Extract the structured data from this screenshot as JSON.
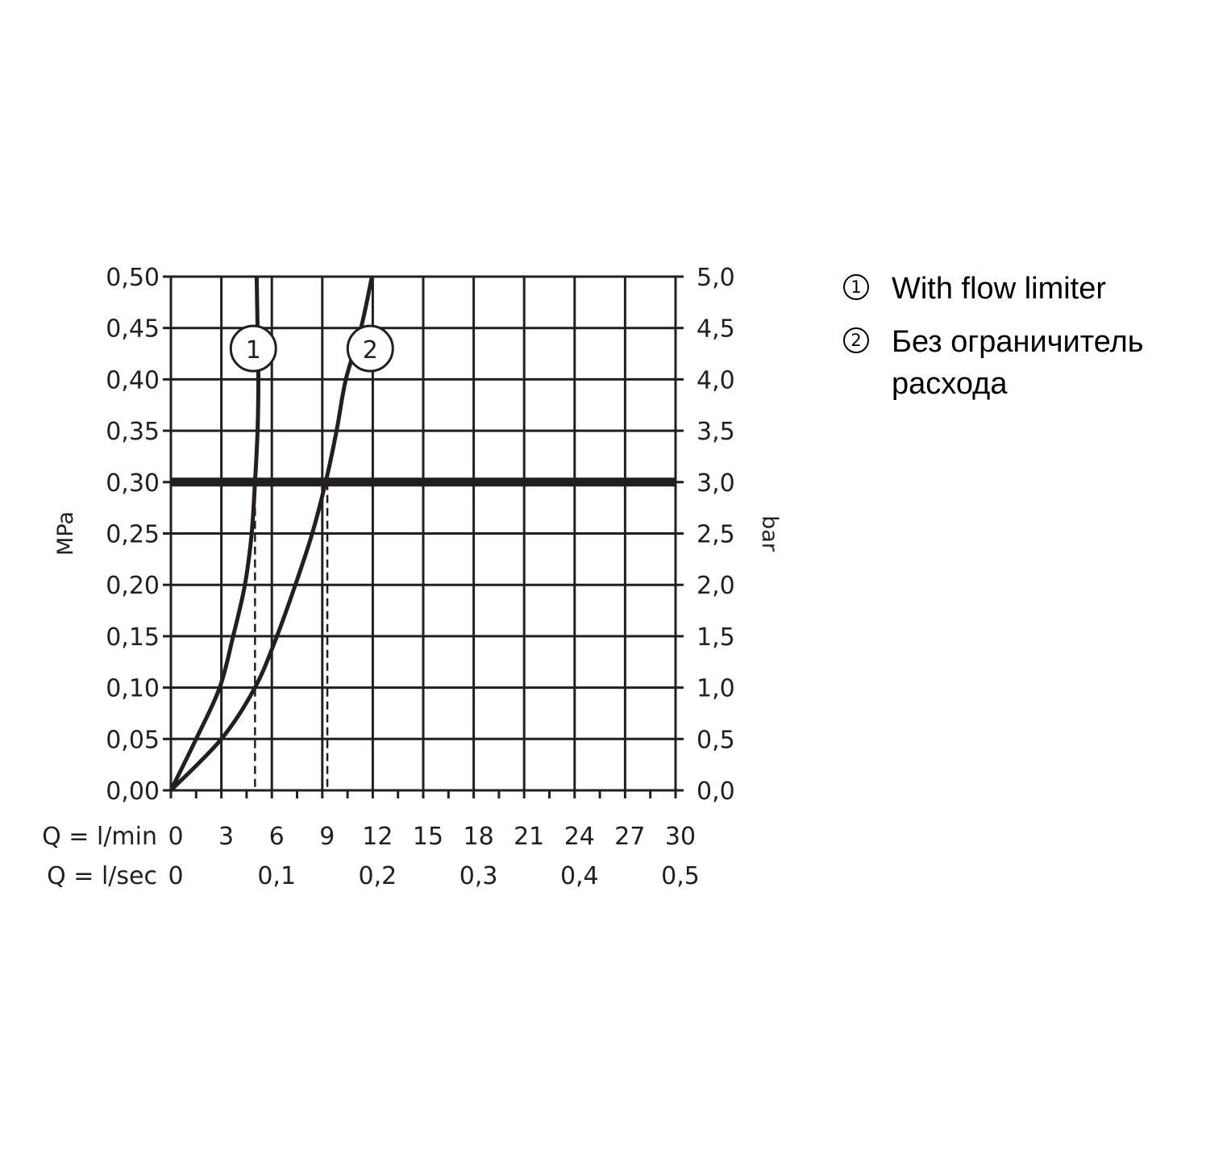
{
  "chart_data": {
    "type": "line",
    "title": "",
    "y_left": {
      "label": "MPa",
      "range": [
        0,
        0.5
      ],
      "ticks": [
        "0,00",
        "0,05",
        "0,10",
        "0,15",
        "0,20",
        "0,25",
        "0,30",
        "0,35",
        "0,40",
        "0,45",
        "0,50"
      ]
    },
    "y_right": {
      "label": "bar",
      "range": [
        0,
        5
      ],
      "ticks": [
        "0,0",
        "0,5",
        "1,0",
        "1,5",
        "2,0",
        "2,5",
        "3,0",
        "3,5",
        "4,0",
        "4,5",
        "5,0"
      ]
    },
    "x_min": {
      "label": "Q = l/min",
      "range": [
        0,
        30
      ],
      "ticks": [
        {
          "v": 0,
          "t": "0"
        },
        {
          "v": 3,
          "t": "3"
        },
        {
          "v": 6,
          "t": "6"
        },
        {
          "v": 9,
          "t": "9"
        },
        {
          "v": 12,
          "t": "12"
        },
        {
          "v": 15,
          "t": "15"
        },
        {
          "v": 18,
          "t": "18"
        },
        {
          "v": 21,
          "t": "21"
        },
        {
          "v": 24,
          "t": "24"
        },
        {
          "v": 27,
          "t": "27"
        },
        {
          "v": 30,
          "t": "30"
        }
      ]
    },
    "x_sec": {
      "label": "Q = l/sec",
      "ticks": [
        {
          "v": 0,
          "t": "0"
        },
        {
          "v": 6,
          "t": "0,1"
        },
        {
          "v": 12,
          "t": "0,2"
        },
        {
          "v": 18,
          "t": "0,3"
        },
        {
          "v": 24,
          "t": "0,4"
        },
        {
          "v": 30,
          "t": "0,5"
        }
      ]
    },
    "grid": true,
    "reference_line": {
      "y": 0.3
    },
    "series": [
      {
        "name": "With flow limiter",
        "marker": "1",
        "marker_at": {
          "x": 4.9,
          "y": 0.43
        },
        "drop_x": 5.0,
        "points": [
          [
            0,
            0
          ],
          [
            1.5,
            0.05
          ],
          [
            2.9,
            0.1
          ],
          [
            3.7,
            0.15
          ],
          [
            4.4,
            0.2
          ],
          [
            4.8,
            0.25
          ],
          [
            5.0,
            0.3
          ],
          [
            5.15,
            0.35
          ],
          [
            5.2,
            0.4
          ],
          [
            5.15,
            0.45
          ],
          [
            5.1,
            0.5
          ]
        ]
      },
      {
        "name": "Без ограничитель расхода",
        "marker": "2",
        "marker_at": {
          "x": 11.85,
          "y": 0.43
        },
        "drop_x": 9.3,
        "points": [
          [
            0,
            0
          ],
          [
            3,
            0.05
          ],
          [
            5,
            0.1
          ],
          [
            6.3,
            0.15
          ],
          [
            7.4,
            0.2
          ],
          [
            8.4,
            0.25
          ],
          [
            9.2,
            0.3
          ],
          [
            9.85,
            0.35
          ],
          [
            10.4,
            0.4
          ],
          [
            11.3,
            0.45
          ],
          [
            11.95,
            0.5
          ]
        ]
      }
    ]
  },
  "legend": [
    {
      "marker": "1",
      "label": "With flow limiter"
    },
    {
      "marker": "2",
      "label": "Без ограничитель расхода"
    }
  ]
}
